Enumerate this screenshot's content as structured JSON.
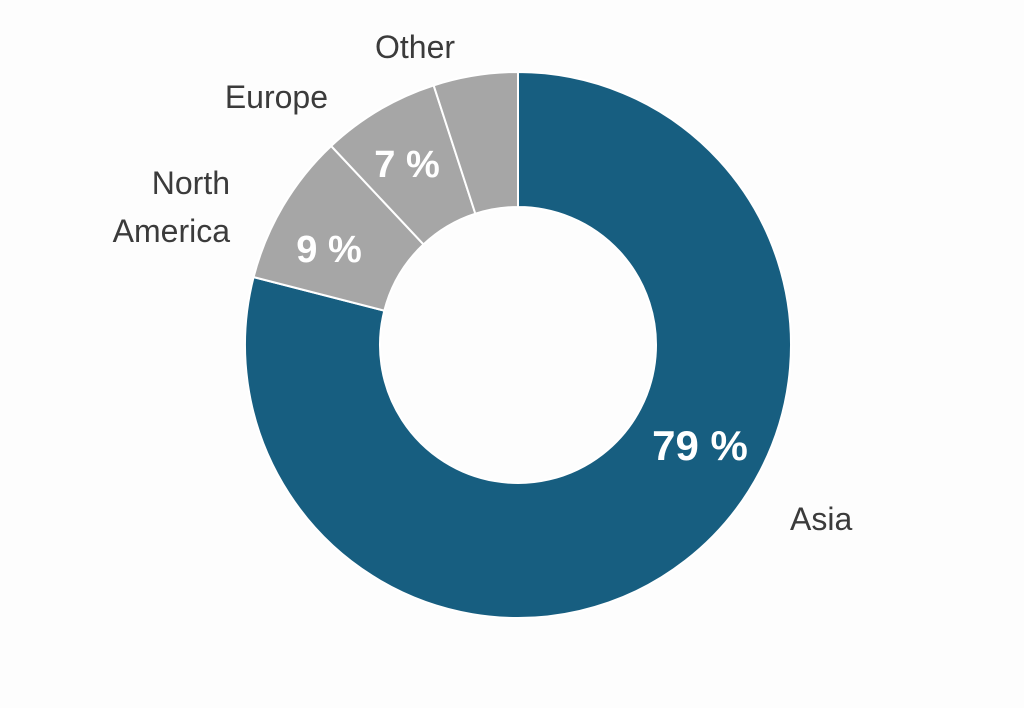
{
  "chart_data": {
    "type": "pie",
    "style": "donut",
    "categories": [
      "Asia",
      "North America",
      "Europe",
      "Other"
    ],
    "values": [
      79,
      9,
      7,
      5
    ],
    "value_labels": [
      "79 %",
      "9 %",
      "7 %",
      ""
    ],
    "colors": [
      "#175e80",
      "#a6a6a6",
      "#a6a6a6",
      "#a6a6a6"
    ],
    "start_angle_deg": 0,
    "direction": "clockwise",
    "title": "",
    "legend": "none"
  }
}
